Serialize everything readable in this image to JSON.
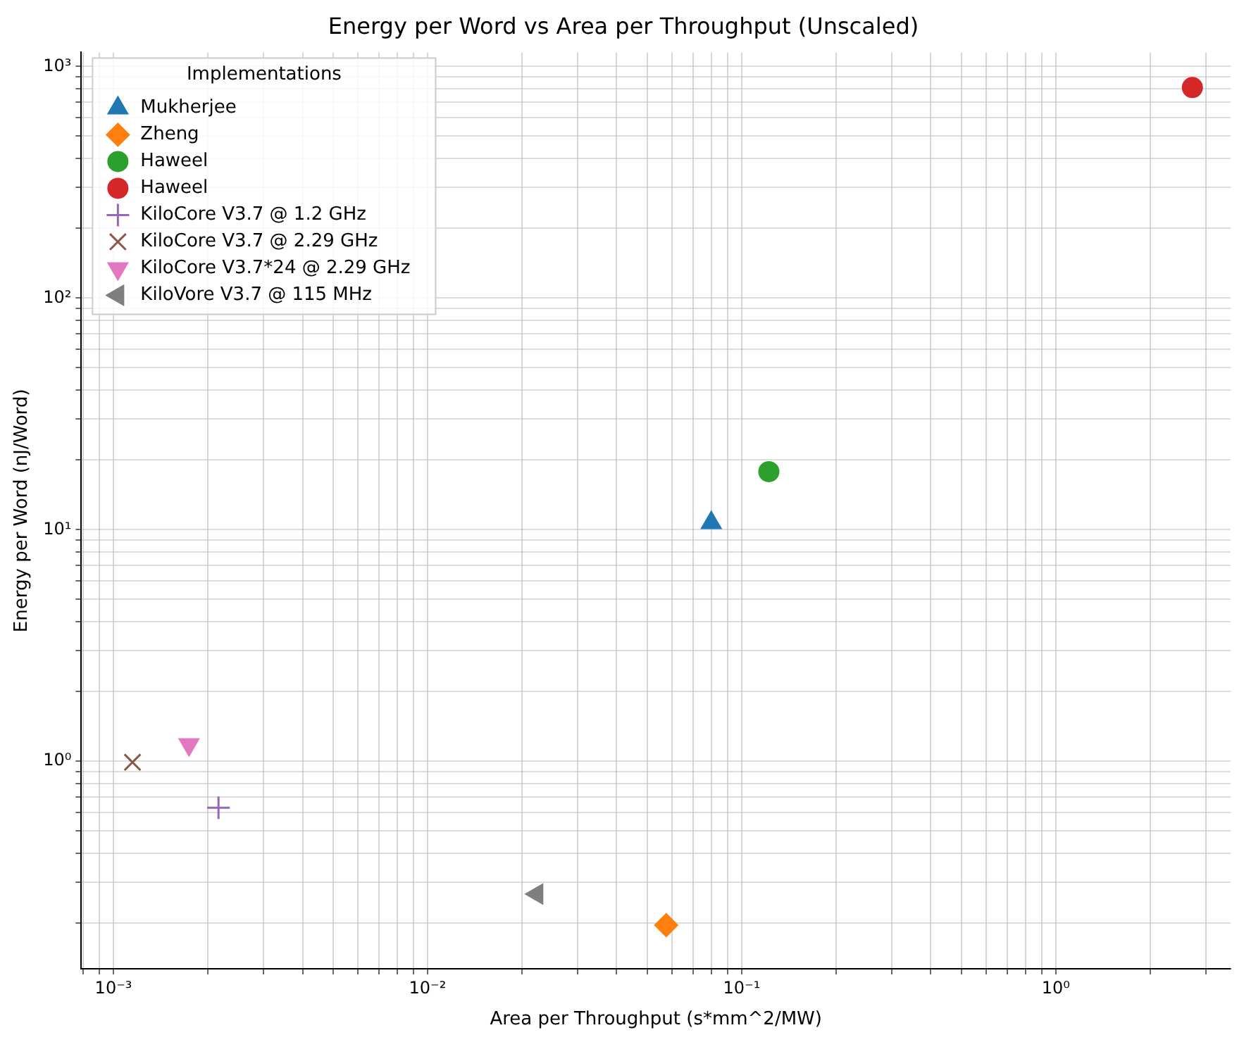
{
  "chart_data": {
    "type": "scatter",
    "title": "Energy per Word vs Area per Throughput (Unscaled)",
    "xlabel": "Area per Throughput (s*mm^2/MW)",
    "ylabel": "Energy per Word (nJ/Word)",
    "legend_title": "Implementations",
    "legend": "top left",
    "log": "xy",
    "grid": true,
    "xlim": [
      0.00079,
      3.6
    ],
    "ylim": [
      0.127,
      1150
    ],
    "xticks": [
      {
        "value": 0.0008,
        "label": null
      },
      {
        "value": 0.0009,
        "label": null
      },
      {
        "value": 0.001,
        "label": "10⁻³"
      },
      {
        "value": 0.002,
        "label": null
      },
      {
        "value": 0.003,
        "label": null
      },
      {
        "value": 0.004,
        "label": null
      },
      {
        "value": 0.005,
        "label": null
      },
      {
        "value": 0.006,
        "label": null
      },
      {
        "value": 0.007,
        "label": null
      },
      {
        "value": 0.008,
        "label": null
      },
      {
        "value": 0.009,
        "label": null
      },
      {
        "value": 0.01,
        "label": "10⁻²"
      },
      {
        "value": 0.02,
        "label": null
      },
      {
        "value": 0.03,
        "label": null
      },
      {
        "value": 0.04,
        "label": null
      },
      {
        "value": 0.05,
        "label": null
      },
      {
        "value": 0.06,
        "label": null
      },
      {
        "value": 0.07,
        "label": null
      },
      {
        "value": 0.08,
        "label": null
      },
      {
        "value": 0.09,
        "label": null
      },
      {
        "value": 0.1,
        "label": "10⁻¹"
      },
      {
        "value": 0.2,
        "label": null
      },
      {
        "value": 0.3,
        "label": null
      },
      {
        "value": 0.4,
        "label": null
      },
      {
        "value": 0.5,
        "label": null
      },
      {
        "value": 0.6,
        "label": null
      },
      {
        "value": 0.7,
        "label": null
      },
      {
        "value": 0.8,
        "label": null
      },
      {
        "value": 0.9,
        "label": null
      },
      {
        "value": 1,
        "label": "10⁰"
      },
      {
        "value": 2,
        "label": null
      },
      {
        "value": 3,
        "label": null
      }
    ],
    "yticks": [
      {
        "value": 0.2,
        "label": null
      },
      {
        "value": 0.3,
        "label": null
      },
      {
        "value": 0.4,
        "label": null
      },
      {
        "value": 0.5,
        "label": null
      },
      {
        "value": 0.6,
        "label": null
      },
      {
        "value": 0.7,
        "label": null
      },
      {
        "value": 0.8,
        "label": null
      },
      {
        "value": 0.9,
        "label": null
      },
      {
        "value": 1,
        "label": "10⁰"
      },
      {
        "value": 2,
        "label": null
      },
      {
        "value": 3,
        "label": null
      },
      {
        "value": 4,
        "label": null
      },
      {
        "value": 5,
        "label": null
      },
      {
        "value": 6,
        "label": null
      },
      {
        "value": 7,
        "label": null
      },
      {
        "value": 8,
        "label": null
      },
      {
        "value": 9,
        "label": null
      },
      {
        "value": 10,
        "label": "10¹"
      },
      {
        "value": 20,
        "label": null
      },
      {
        "value": 30,
        "label": null
      },
      {
        "value": 40,
        "label": null
      },
      {
        "value": 50,
        "label": null
      },
      {
        "value": 60,
        "label": null
      },
      {
        "value": 70,
        "label": null
      },
      {
        "value": 80,
        "label": null
      },
      {
        "value": 90,
        "label": null
      },
      {
        "value": 100,
        "label": "10²"
      },
      {
        "value": 200,
        "label": null
      },
      {
        "value": 300,
        "label": null
      },
      {
        "value": 400,
        "label": null
      },
      {
        "value": 500,
        "label": null
      },
      {
        "value": 600,
        "label": null
      },
      {
        "value": 700,
        "label": null
      },
      {
        "value": 800,
        "label": null
      },
      {
        "value": 900,
        "label": null
      },
      {
        "value": 1000,
        "label": "10³"
      }
    ],
    "series": [
      {
        "name": "Mukherjee",
        "color": "#1f77b4",
        "marker": "triangle",
        "x": [
          0.08
        ],
        "values": [
          10.7
        ]
      },
      {
        "name": "Zheng",
        "color": "#ff7f0e",
        "marker": "diamond",
        "x": [
          0.0575
        ],
        "values": [
          0.196
        ]
      },
      {
        "name": "Haweel",
        "color": "#2ca02c",
        "marker": "circle",
        "x": [
          0.122
        ],
        "values": [
          17.8
        ]
      },
      {
        "name": "Haweel",
        "color": "#d62728",
        "marker": "circle",
        "x": [
          2.72
        ],
        "values": [
          811
        ]
      },
      {
        "name": "KiloCore V3.7 @ 1.2 GHz",
        "color": "#9467bd",
        "marker": "plus",
        "x": [
          0.00216
        ],
        "values": [
          0.63
        ]
      },
      {
        "name": "KiloCore V3.7 @ 2.29 GHz",
        "color": "#8c564b",
        "marker": "x",
        "x": [
          0.00115
        ],
        "values": [
          0.99
        ]
      },
      {
        "name": "KiloCore V3.7*24 @ 2.29 GHz",
        "color": "#e377c2",
        "marker": "triangle_down",
        "x": [
          0.00174
        ],
        "values": [
          1.18
        ]
      },
      {
        "name": "KiloVore V3.7 @ 115 MHz",
        "color": "#7f7f7f",
        "marker": "triangle_left",
        "x": [
          0.0223
        ],
        "values": [
          0.267
        ]
      }
    ]
  }
}
